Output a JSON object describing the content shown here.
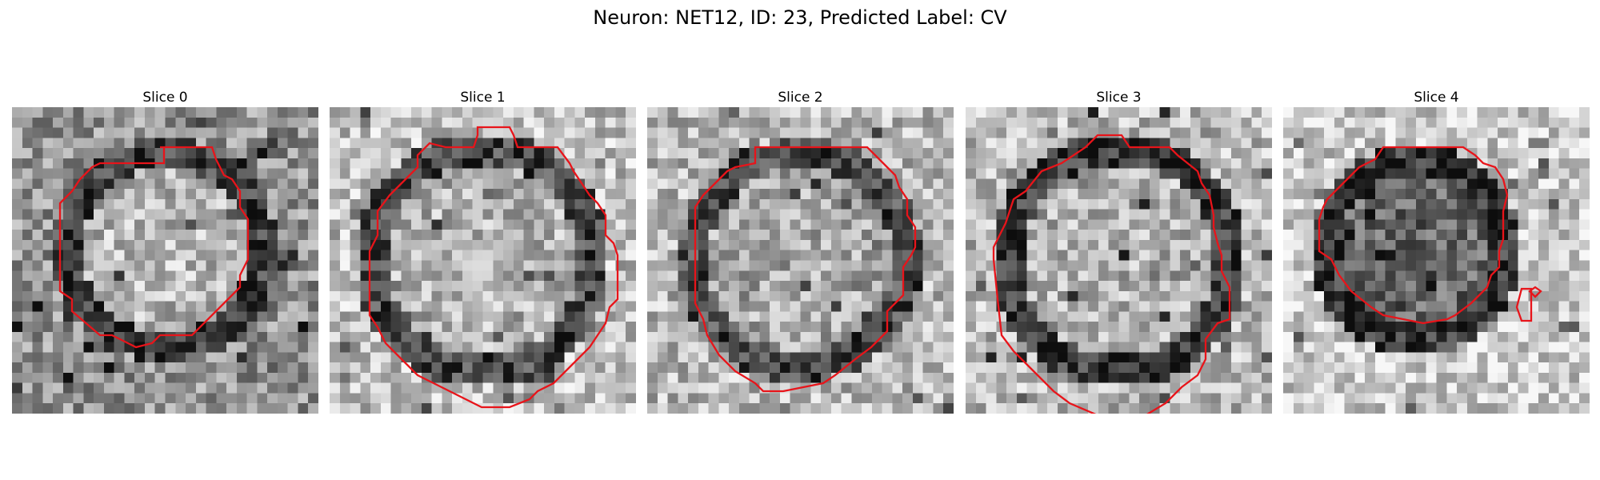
{
  "figure_title": "Neuron: NET12, ID: 23, Predicted Label: CV",
  "contour_color": "#e8141a",
  "slices": [
    {
      "title": "Slice 0"
    },
    {
      "title": "Slice 1"
    },
    {
      "title": "Slice 2"
    },
    {
      "title": "Slice 3"
    },
    {
      "title": "Slice 4"
    }
  ]
}
